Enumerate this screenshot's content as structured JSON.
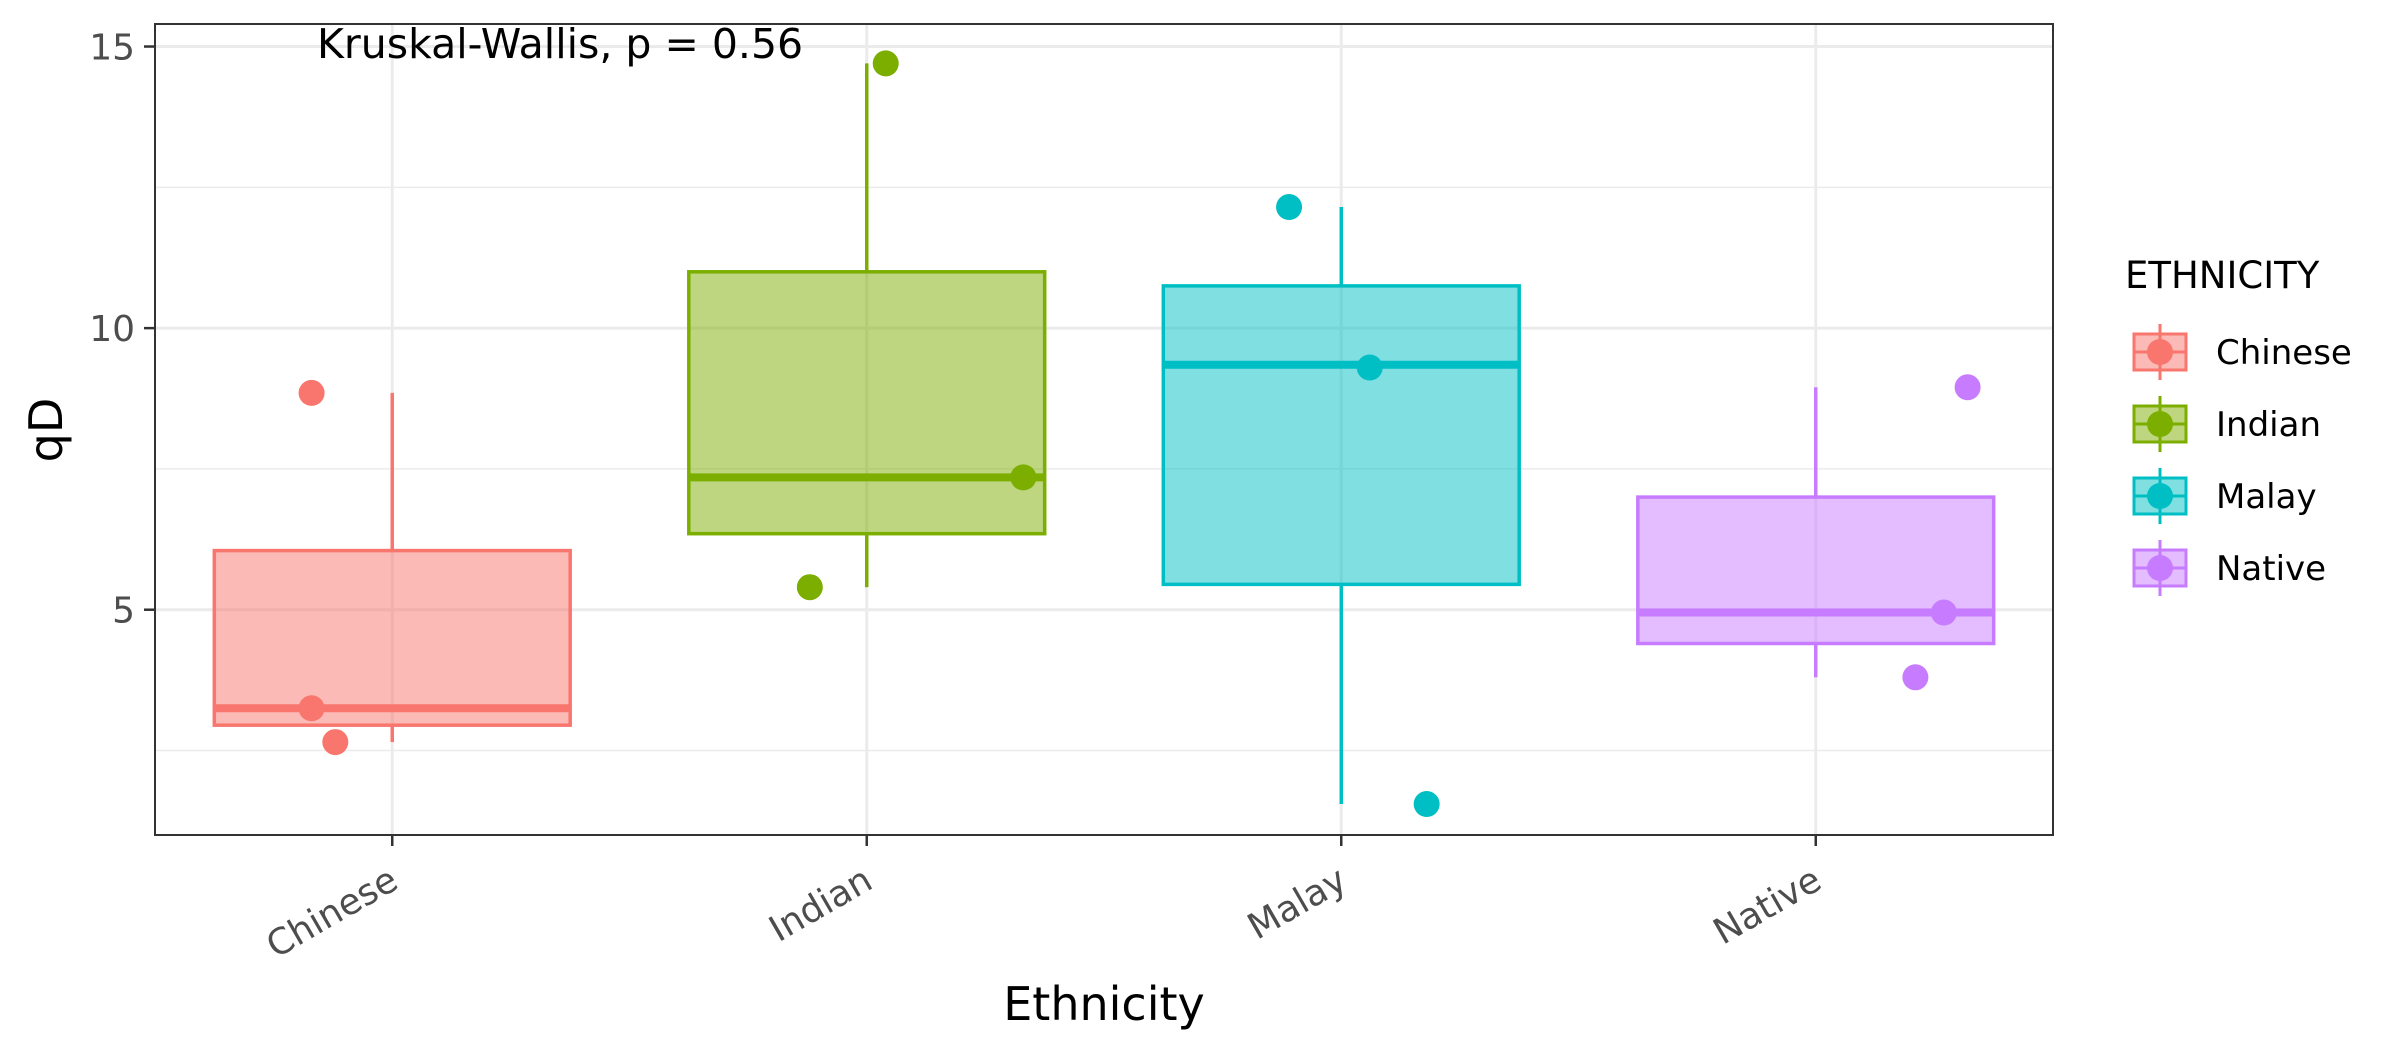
{
  "chart_data": {
    "type": "boxplot",
    "title": "",
    "xlabel": "Ethnicity",
    "ylabel": "qD",
    "annotation": "Kruskal-Wallis, p = 0.56",
    "categories": [
      "Chinese",
      "Indian",
      "Malay",
      "Native"
    ],
    "ylim": [
      1.0,
      15.4
    ],
    "yticks": [
      5,
      10,
      15
    ],
    "grid": true,
    "legend": {
      "title": "ETHNICITY",
      "position": "right"
    },
    "series": [
      {
        "name": "Chinese",
        "color": "#F8766D",
        "min": 2.65,
        "q1": 2.95,
        "median": 3.25,
        "q3": 6.05,
        "max": 8.85,
        "points": [
          {
            "x": -0.17,
            "y": 8.85
          },
          {
            "x": -0.17,
            "y": 3.25
          },
          {
            "x": -0.12,
            "y": 2.65
          }
        ]
      },
      {
        "name": "Indian",
        "color": "#7CAE00",
        "min": 5.4,
        "q1": 6.35,
        "median": 7.35,
        "q3": 11.0,
        "max": 14.7,
        "points": [
          {
            "x": 0.04,
            "y": 14.7
          },
          {
            "x": 0.33,
            "y": 7.35
          },
          {
            "x": -0.12,
            "y": 5.4
          }
        ]
      },
      {
        "name": "Malay",
        "color": "#00BFC4",
        "min": 1.55,
        "q1": 5.45,
        "median": 9.35,
        "q3": 10.75,
        "max": 12.15,
        "points": [
          {
            "x": -0.11,
            "y": 12.15
          },
          {
            "x": 0.06,
            "y": 9.3
          },
          {
            "x": 0.18,
            "y": 1.55
          }
        ]
      },
      {
        "name": "Native",
        "color": "#C77CFF",
        "min": 3.8,
        "q1": 4.4,
        "median": 4.95,
        "q3": 7.0,
        "max": 8.95,
        "points": [
          {
            "x": 0.32,
            "y": 8.95
          },
          {
            "x": 0.27,
            "y": 4.95
          },
          {
            "x": 0.21,
            "y": 3.8
          }
        ]
      }
    ]
  }
}
